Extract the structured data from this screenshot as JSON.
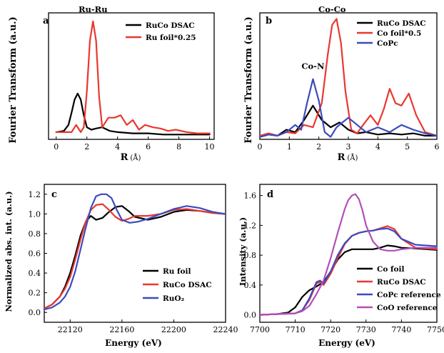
{
  "chart_data": [
    {
      "panel": "a",
      "type": "line",
      "xlabel": "R",
      "xlabel_unit": "(Å)",
      "ylabel": "Fourier Transform (a.u.)",
      "xlim": [
        -0.5,
        10.3
      ],
      "ylim": [
        0,
        1.05
      ],
      "xticks": [
        0,
        2,
        4,
        6,
        8,
        10
      ],
      "yticks": [],
      "annotations": [
        {
          "text": "Ru-Ru",
          "x": 2.4,
          "y": 1.02
        }
      ],
      "legend_position": "top-right",
      "series": [
        {
          "name": "RuCo DSAC",
          "color": "#000000",
          "x": [
            0,
            0.5,
            0.8,
            1.0,
            1.2,
            1.4,
            1.6,
            1.8,
            2.0,
            2.3,
            2.6,
            3.0,
            3.5,
            4.0,
            5.0,
            6.0,
            7.0,
            8.0,
            9.0,
            10.0
          ],
          "y": [
            0.06,
            0.07,
            0.12,
            0.22,
            0.33,
            0.38,
            0.33,
            0.2,
            0.1,
            0.08,
            0.09,
            0.1,
            0.07,
            0.06,
            0.05,
            0.05,
            0.04,
            0.04,
            0.04,
            0.04
          ]
        },
        {
          "name": "Ru foil*0.25",
          "color": "#e8382f",
          "x": [
            0,
            0.5,
            1.0,
            1.3,
            1.6,
            1.8,
            2.0,
            2.2,
            2.4,
            2.6,
            2.8,
            3.0,
            3.4,
            3.8,
            4.2,
            4.6,
            5.0,
            5.4,
            5.8,
            6.3,
            6.8,
            7.3,
            7.8,
            8.5,
            9.2,
            10.0
          ],
          "y": [
            0.06,
            0.06,
            0.06,
            0.12,
            0.06,
            0.1,
            0.4,
            0.82,
            0.98,
            0.82,
            0.35,
            0.1,
            0.18,
            0.18,
            0.2,
            0.12,
            0.16,
            0.08,
            0.12,
            0.1,
            0.09,
            0.07,
            0.08,
            0.06,
            0.05,
            0.05
          ]
        }
      ]
    },
    {
      "panel": "b",
      "type": "line",
      "xlabel": "R",
      "xlabel_unit": "(Å)",
      "ylabel": "Fourier Transform (a.u.)",
      "xlim": [
        0,
        6
      ],
      "ylim": [
        0,
        1.05
      ],
      "xticks": [
        0,
        1,
        2,
        3,
        4,
        5,
        6
      ],
      "yticks": [],
      "annotations": [
        {
          "text": "Co-Co",
          "x": 2.45,
          "y": 1.02
        },
        {
          "text": "Co-N",
          "x": 1.8,
          "y": 0.55
        }
      ],
      "legend_position": "top-right",
      "series": [
        {
          "name": "RuCo DSAC",
          "color": "#000000",
          "x": [
            0,
            0.3,
            0.6,
            0.9,
            1.2,
            1.5,
            1.8,
            2.1,
            2.4,
            2.7,
            3.0,
            3.3,
            3.6,
            4.0,
            4.4,
            4.8,
            5.2,
            5.6,
            6.0
          ],
          "y": [
            0.02,
            0.04,
            0.03,
            0.08,
            0.06,
            0.16,
            0.28,
            0.16,
            0.1,
            0.14,
            0.08,
            0.05,
            0.06,
            0.04,
            0.05,
            0.04,
            0.05,
            0.03,
            0.03
          ]
        },
        {
          "name": "Co foil*0.5",
          "color": "#e8382f",
          "x": [
            0,
            0.3,
            0.6,
            0.9,
            1.2,
            1.5,
            1.8,
            2.1,
            2.3,
            2.45,
            2.6,
            2.75,
            2.9,
            3.1,
            3.3,
            3.5,
            3.75,
            4.0,
            4.2,
            4.4,
            4.6,
            4.8,
            5.05,
            5.3,
            5.6,
            6.0
          ],
          "y": [
            0.03,
            0.05,
            0.03,
            0.06,
            0.05,
            0.12,
            0.1,
            0.3,
            0.7,
            0.95,
            1.0,
            0.8,
            0.4,
            0.08,
            0.05,
            0.12,
            0.2,
            0.12,
            0.25,
            0.42,
            0.3,
            0.28,
            0.38,
            0.2,
            0.06,
            0.03
          ]
        },
        {
          "name": "CoPc",
          "color": "#3b4bbf",
          "x": [
            0,
            0.3,
            0.6,
            0.9,
            1.2,
            1.4,
            1.6,
            1.8,
            2.0,
            2.2,
            2.4,
            2.6,
            2.8,
            3.0,
            3.3,
            3.6,
            4.0,
            4.4,
            4.8,
            5.2,
            5.6,
            6.0
          ],
          "y": [
            0.02,
            0.04,
            0.03,
            0.06,
            0.12,
            0.08,
            0.3,
            0.5,
            0.32,
            0.06,
            0.02,
            0.1,
            0.14,
            0.18,
            0.12,
            0.06,
            0.1,
            0.06,
            0.12,
            0.08,
            0.05,
            0.03
          ]
        }
      ]
    },
    {
      "panel": "c",
      "type": "line",
      "xlabel": "Energy (eV)",
      "ylabel": "Normalized abs. int. (a.u.)",
      "xlim": [
        22100,
        22240
      ],
      "ylim": [
        -0.1,
        1.3
      ],
      "xticks": [
        22120,
        22160,
        22200,
        22240
      ],
      "yticks": [
        0.0,
        0.2,
        0.4,
        0.6,
        0.8,
        1.0,
        1.2
      ],
      "legend_position": "bottom-right",
      "series": [
        {
          "name": "Ru foil",
          "color": "#000000",
          "x": [
            22100,
            22106,
            22112,
            22116,
            22120,
            22124,
            22128,
            22132,
            22136,
            22140,
            22145,
            22150,
            22155,
            22160,
            22165,
            22170,
            22180,
            22190,
            22200,
            22210,
            22220,
            22230,
            22240
          ],
          "y": [
            0.04,
            0.08,
            0.16,
            0.26,
            0.4,
            0.58,
            0.78,
            0.92,
            0.98,
            0.94,
            0.96,
            1.02,
            1.07,
            1.08,
            1.03,
            0.97,
            0.94,
            0.97,
            1.02,
            1.04,
            1.03,
            1.01,
            1.0
          ]
        },
        {
          "name": "RuCo DSAC",
          "color": "#e8382f",
          "x": [
            22100,
            22106,
            22112,
            22116,
            22120,
            22124,
            22128,
            22132,
            22136,
            22140,
            22145,
            22150,
            22155,
            22160,
            22165,
            22170,
            22180,
            22190,
            22200,
            22210,
            22220,
            22230,
            22240
          ],
          "y": [
            0.04,
            0.08,
            0.16,
            0.24,
            0.36,
            0.54,
            0.74,
            0.92,
            1.04,
            1.09,
            1.1,
            1.04,
            0.97,
            0.93,
            0.95,
            0.98,
            0.98,
            1.0,
            1.04,
            1.05,
            1.03,
            1.01,
            1.0
          ]
        },
        {
          "name": "RuO₂",
          "color": "#3b4bbf",
          "x": [
            22100,
            22106,
            22112,
            22116,
            22120,
            22124,
            22128,
            22132,
            22136,
            22140,
            22144,
            22148,
            22152,
            22156,
            22160,
            22166,
            22172,
            22180,
            22190,
            22200,
            22210,
            22220,
            22230,
            22240
          ],
          "y": [
            0.03,
            0.05,
            0.1,
            0.16,
            0.26,
            0.42,
            0.64,
            0.86,
            1.06,
            1.18,
            1.2,
            1.2,
            1.16,
            1.04,
            0.94,
            0.91,
            0.92,
            0.95,
            1.0,
            1.05,
            1.08,
            1.06,
            1.02,
            1.0
          ]
        }
      ]
    },
    {
      "panel": "d",
      "type": "line",
      "xlabel": "Energy (eV)",
      "ylabel": "Intensity (a.u.)",
      "xlim": [
        7700,
        7750
      ],
      "ylim": [
        -0.1,
        1.75
      ],
      "xticks": [
        7700,
        7710,
        7720,
        7730,
        7740,
        7750
      ],
      "yticks": [
        0.0,
        0.4,
        0.8,
        1.2,
        1.6
      ],
      "legend_position": "bottom-right",
      "series": [
        {
          "name": "Co foil",
          "color": "#000000",
          "x": [
            7700,
            7705,
            7708,
            7710,
            7712,
            7714,
            7716,
            7718,
            7720,
            7722,
            7724,
            7726,
            7728,
            7730,
            7732,
            7734,
            7736,
            7738,
            7740,
            7744,
            7750
          ],
          "y": [
            0.0,
            0.01,
            0.03,
            0.1,
            0.24,
            0.33,
            0.38,
            0.44,
            0.58,
            0.74,
            0.84,
            0.88,
            0.88,
            0.88,
            0.88,
            0.9,
            0.93,
            0.92,
            0.9,
            0.89,
            0.87
          ]
        },
        {
          "name": "RuCo DSAC",
          "color": "#e8382f",
          "x": [
            7700,
            7705,
            7710,
            7712,
            7714,
            7716,
            7717,
            7718,
            7720,
            7722,
            7724,
            7726,
            7728,
            7730,
            7732,
            7734,
            7736,
            7738,
            7740,
            7744,
            7750
          ],
          "y": [
            0.0,
            0.01,
            0.02,
            0.06,
            0.2,
            0.42,
            0.44,
            0.4,
            0.55,
            0.76,
            0.95,
            1.06,
            1.1,
            1.12,
            1.13,
            1.16,
            1.19,
            1.15,
            1.02,
            0.9,
            0.88
          ]
        },
        {
          "name": "CoPc reference",
          "color": "#3b4bbf",
          "x": [
            7700,
            7705,
            7710,
            7712,
            7714,
            7716,
            7717,
            7718,
            7720,
            7722,
            7724,
            7726,
            7728,
            7730,
            7732,
            7734,
            7736,
            7738,
            7740,
            7744,
            7750
          ],
          "y": [
            0.0,
            0.01,
            0.02,
            0.06,
            0.22,
            0.44,
            0.46,
            0.42,
            0.58,
            0.8,
            0.96,
            1.06,
            1.1,
            1.12,
            1.13,
            1.15,
            1.16,
            1.12,
            1.02,
            0.94,
            0.92
          ]
        },
        {
          "name": "CoO reference",
          "color": "#b44fb8",
          "x": [
            7700,
            7705,
            7710,
            7712,
            7714,
            7716,
            7718,
            7720,
            7722,
            7724,
            7725,
            7726,
            7727,
            7728,
            7729,
            7730,
            7732,
            7734,
            7736,
            7738,
            7740,
            7744,
            7750
          ],
          "y": [
            0.0,
            0.01,
            0.02,
            0.05,
            0.12,
            0.28,
            0.46,
            0.76,
            1.1,
            1.42,
            1.54,
            1.6,
            1.62,
            1.55,
            1.4,
            1.2,
            0.98,
            0.88,
            0.86,
            0.86,
            0.88,
            0.9,
            0.9
          ]
        }
      ]
    }
  ]
}
